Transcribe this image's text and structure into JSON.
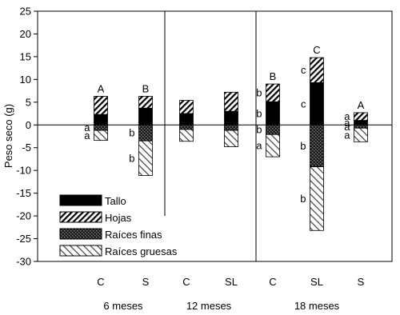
{
  "chart_data": {
    "type": "bar",
    "subtype": "stacked-diverging",
    "ylabel": "Peso seco (g)",
    "xlabel": "",
    "ylim": [
      -30,
      25
    ],
    "yticks": [
      -30,
      -25,
      -20,
      -15,
      -10,
      -5,
      0,
      5,
      10,
      15,
      20,
      25
    ],
    "grid": false,
    "legend_position": "bottom-left",
    "legend": [
      {
        "name": "Tallo",
        "fill": "black"
      },
      {
        "name": "Hojas",
        "fill": "hatch-diagonal"
      },
      {
        "name": "Raíces finas",
        "fill": "dark-dotted"
      },
      {
        "name": "Raíces gruesas",
        "fill": "light-hatch"
      }
    ],
    "groups": [
      {
        "label": "6 meses",
        "categories": [
          "C",
          "S"
        ]
      },
      {
        "label": "12 meses",
        "categories": [
          "C",
          "SL"
        ]
      },
      {
        "label": "18 meses",
        "categories": [
          "C",
          "SL",
          "S"
        ]
      }
    ],
    "categories": [
      "C",
      "S",
      "C",
      "SL",
      "C",
      "SL",
      "S"
    ],
    "series": [
      {
        "name": "Tallo",
        "values": [
          2.3,
          3.7,
          2.5,
          3.0,
          5.1,
          9.3,
          1.0
        ]
      },
      {
        "name": "Hojas",
        "values": [
          4.0,
          2.6,
          2.9,
          4.2,
          3.9,
          5.5,
          1.7
        ]
      },
      {
        "name": "Raíces finas",
        "values": [
          -1.2,
          -3.5,
          -1.0,
          -1.2,
          -2.1,
          -9.2,
          -0.7
        ]
      },
      {
        "name": "Raíces gruesas",
        "values": [
          -2.2,
          -7.6,
          -2.6,
          -3.6,
          -4.9,
          -14.0,
          -3.0
        ]
      }
    ],
    "annotations": [
      {
        "bar": 0,
        "top": "A",
        "labels": [
          {
            "series": "Raíces finas",
            "text": "a"
          },
          {
            "series": "Raíces gruesas",
            "text": "a"
          }
        ]
      },
      {
        "bar": 1,
        "top": "B",
        "labels": [
          {
            "series": "Raíces finas",
            "text": "b"
          },
          {
            "series": "Raíces gruesas",
            "text": "b"
          }
        ]
      },
      {
        "bar": 2,
        "top": "",
        "labels": []
      },
      {
        "bar": 3,
        "top": "",
        "labels": []
      },
      {
        "bar": 4,
        "top": "B",
        "labels": [
          {
            "series": "Hojas",
            "text": "b"
          },
          {
            "series": "Tallo",
            "text": "b"
          },
          {
            "series": "Raíces finas",
            "text": "b"
          },
          {
            "series": "Raíces gruesas",
            "text": "a"
          }
        ]
      },
      {
        "bar": 5,
        "top": "C",
        "labels": [
          {
            "series": "Hojas",
            "text": "c"
          },
          {
            "series": "Tallo",
            "text": "c"
          },
          {
            "series": "Raíces finas",
            "text": "b"
          },
          {
            "series": "Raíces gruesas",
            "text": "b"
          }
        ]
      },
      {
        "bar": 6,
        "top": "A",
        "labels": [
          {
            "series": "Hojas",
            "text": "a"
          },
          {
            "series": "Tallo",
            "text": "a"
          },
          {
            "series": "Raíces finas",
            "text": "a"
          },
          {
            "series": "Raíces gruesas",
            "text": "a"
          }
        ]
      }
    ]
  }
}
